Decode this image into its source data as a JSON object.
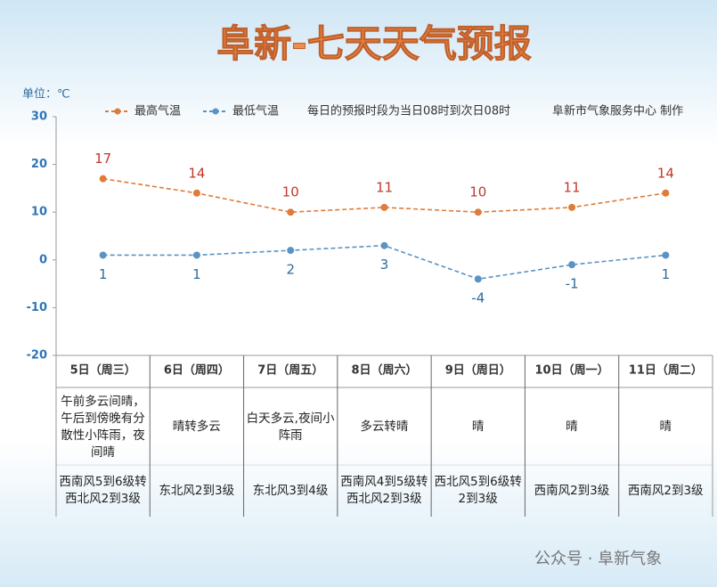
{
  "header": {
    "title": "阜新-七天天气预报",
    "unit": "单位：℃",
    "note": "每日的预报时段为当日08时到次日08时",
    "source": "阜新市气象服务中心 制作",
    "watermark": "公众号 · 阜新气象"
  },
  "chart_data": {
    "type": "line",
    "categories": [
      "5日（周三）",
      "6日（周四）",
      "7日（周五）",
      "8日（周六）",
      "9日（周日）",
      "10日（周一）",
      "11日（周二）"
    ],
    "series": [
      {
        "name": "最高气温",
        "color": "#e07b39",
        "label_color": "#c0392b",
        "values": [
          17,
          14,
          10,
          11,
          10,
          11,
          14
        ]
      },
      {
        "name": "最低气温",
        "color": "#5a93c4",
        "label_color": "#2e6b9e",
        "values": [
          1,
          1,
          2,
          3,
          -4,
          -1,
          1
        ]
      }
    ],
    "ylim": [
      -20,
      30
    ],
    "yticks": [
      30,
      20,
      10,
      0,
      -10,
      -20
    ],
    "grid": false
  },
  "forecast_table": {
    "weather": [
      "午前多云间晴，午后到傍晚有分散性小阵雨，夜间晴",
      "晴转多云",
      "白天多云,夜间小阵雨",
      "多云转晴",
      "晴",
      "晴",
      "晴"
    ],
    "wind": [
      "西南风5到6级转西北风2到3级",
      "东北风2到3级",
      "东北风3到4级",
      "西南风4到5级转西北风2到3级",
      "西北风5到6级转2到3级",
      "西南风2到3级",
      "西南风2到3级"
    ]
  }
}
